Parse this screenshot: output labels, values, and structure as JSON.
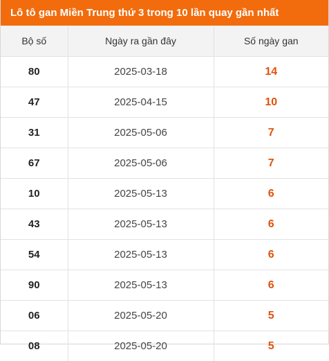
{
  "title": "Lô tô gan Miền Trung thứ 3 trong 10 lần quay gần nhất",
  "columns": [
    "Bộ số",
    "Ngày ra gần đây",
    "Số ngày gan"
  ],
  "rows": [
    {
      "num": "80",
      "date": "2025-03-18",
      "days": "14"
    },
    {
      "num": "47",
      "date": "2025-04-15",
      "days": "10"
    },
    {
      "num": "31",
      "date": "2025-05-06",
      "days": "7"
    },
    {
      "num": "67",
      "date": "2025-05-06",
      "days": "7"
    },
    {
      "num": "10",
      "date": "2025-05-13",
      "days": "6"
    },
    {
      "num": "43",
      "date": "2025-05-13",
      "days": "6"
    },
    {
      "num": "54",
      "date": "2025-05-13",
      "days": "6"
    },
    {
      "num": "90",
      "date": "2025-05-13",
      "days": "6"
    },
    {
      "num": "06",
      "date": "2025-05-20",
      "days": "5"
    },
    {
      "num": "08",
      "date": "2025-05-20",
      "days": "5"
    }
  ],
  "colors": {
    "header_bg": "#f26c0d",
    "days_text": "#e0520a",
    "column_header_bg": "#f3f3f3"
  }
}
